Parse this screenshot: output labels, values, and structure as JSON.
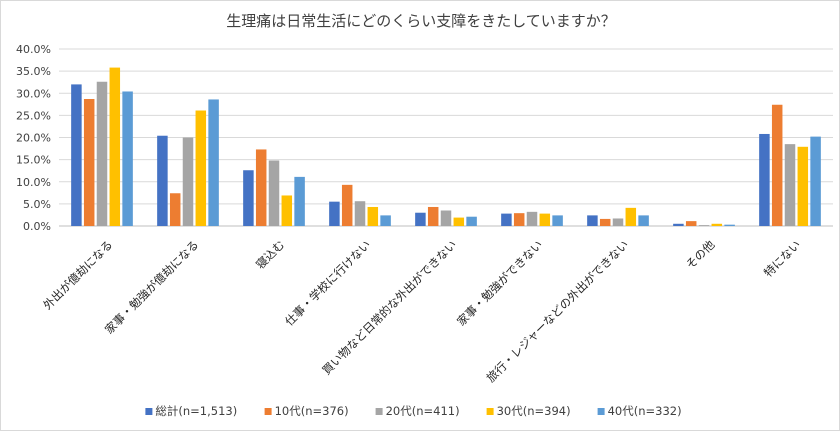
{
  "chart_data": {
    "type": "bar",
    "title": "生理痛は日常生活にどのくらい支障をきたしていますか？",
    "categories": [
      "外出が億劫になる",
      "家事・勉強が億劫になる",
      "寝込む",
      "仕事・学校に行けない",
      "買い物など日常的な外出ができない",
      "家事・勉強ができない",
      "旅行・レジャーなどの外出ができない",
      "その他",
      "特にない"
    ],
    "series": [
      {
        "name": "総計(n=1,513)",
        "color": "#4472C4",
        "values": [
          32.0,
          20.4,
          12.6,
          5.5,
          3.0,
          2.8,
          2.4,
          0.5,
          20.8
        ]
      },
      {
        "name": "10代(n=376)",
        "color": "#ED7D31",
        "values": [
          28.7,
          7.4,
          17.3,
          9.3,
          4.3,
          2.9,
          1.6,
          1.1,
          27.4
        ]
      },
      {
        "name": "20代(n=411)",
        "color": "#A5A5A5",
        "values": [
          32.6,
          20.0,
          14.8,
          5.6,
          3.5,
          3.2,
          1.7,
          0.2,
          18.5
        ]
      },
      {
        "name": "30代(n=394)",
        "color": "#FFC000",
        "values": [
          35.8,
          26.1,
          6.9,
          4.3,
          1.9,
          2.8,
          4.1,
          0.5,
          17.9
        ]
      },
      {
        "name": "40代(n=332)",
        "color": "#5B9BD5",
        "values": [
          30.4,
          28.6,
          11.1,
          2.4,
          2.1,
          2.4,
          2.4,
          0.3,
          20.2
        ]
      }
    ],
    "yticks": [
      "0.0%",
      "5.0%",
      "10.0%",
      "15.0%",
      "20.0%",
      "25.0%",
      "30.0%",
      "35.0%",
      "40.0%"
    ],
    "ylim": [
      0,
      40
    ],
    "grid": true,
    "legend": "bottom"
  }
}
